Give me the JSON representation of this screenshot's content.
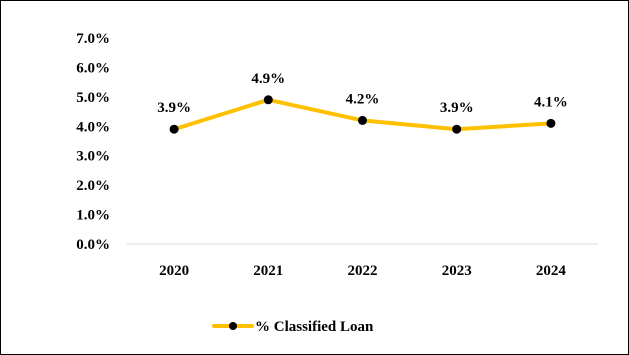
{
  "chart_data": {
    "type": "line",
    "title": "",
    "xlabel": "",
    "ylabel": "",
    "categories": [
      "2020",
      "2021",
      "2022",
      "2023",
      "2024"
    ],
    "series": [
      {
        "name": "% Classified Loan",
        "values": [
          3.9,
          4.9,
          4.2,
          3.9,
          4.1
        ],
        "data_labels": [
          "3.9%",
          "4.9%",
          "4.2%",
          "3.9%",
          "4.1%"
        ],
        "color": "#FFC000",
        "marker_color": "#000000"
      }
    ],
    "ylim": [
      0,
      7
    ],
    "y_ticks": [
      0,
      1,
      2,
      3,
      4,
      5,
      6,
      7
    ],
    "y_tick_labels": [
      "0.0%",
      "1.0%",
      "2.0%",
      "3.0%",
      "4.0%",
      "5.0%",
      "6.0%",
      "7.0%"
    ],
    "grid": false,
    "legend": "bottom-center"
  }
}
